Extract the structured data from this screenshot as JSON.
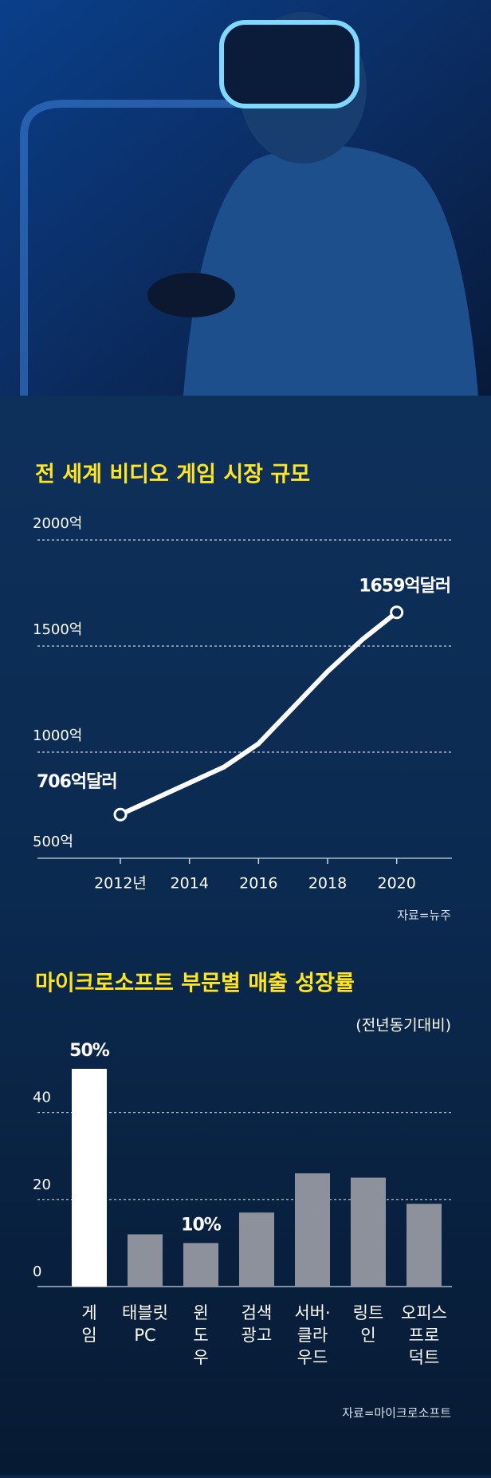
{
  "chart_data": [
    {
      "type": "line",
      "title": "전 세계 비디오 게임 시장 규모",
      "x": [
        2012,
        2015,
        2016,
        2017,
        2018,
        2019,
        2020
      ],
      "values": [
        706,
        930,
        1040,
        1210,
        1380,
        1530,
        1659
      ],
      "value_labels": [
        "706억달러",
        null,
        null,
        null,
        null,
        null,
        "1659억달러"
      ],
      "color": "#ffffff",
      "xlim": [
        2009.6,
        2021.6
      ],
      "xticks": [
        {
          "value": 2012,
          "label": "2012년"
        },
        2014,
        2016,
        2018,
        2020
      ],
      "ylim": [
        500,
        2000
      ],
      "yticks": [
        {
          "value": 500,
          "label": "500억"
        },
        {
          "value": 1000,
          "label": "1000억"
        },
        {
          "value": 1500,
          "label": "1500억"
        },
        {
          "value": 2000,
          "label": "2000억"
        }
      ],
      "grid": true,
      "source": "자료=뉴주"
    },
    {
      "type": "bar",
      "title": "마이크로소프트 부문별 매출 성장률",
      "subtitle": "(전년동기대비)",
      "categories": [
        "게\n임",
        "태블릿\nPC",
        "윈\n도\n우",
        "검색\n광고",
        "서버·\n클라\n우드",
        "링트\n인",
        "오피스\n프로\n덕트"
      ],
      "values": [
        50,
        12,
        10,
        17,
        26,
        25,
        19
      ],
      "value_labels": [
        "50%",
        null,
        "10%",
        null,
        null,
        null,
        null
      ],
      "colors": [
        "#ffffff",
        "#8c919b",
        "#8c919b",
        "#8c919b",
        "#8c919b",
        "#8c919b",
        "#8c919b"
      ],
      "ylim": [
        0,
        50
      ],
      "yticks": [
        0,
        20,
        40
      ],
      "grid": true,
      "source": "자료=마이크로소프트"
    }
  ]
}
